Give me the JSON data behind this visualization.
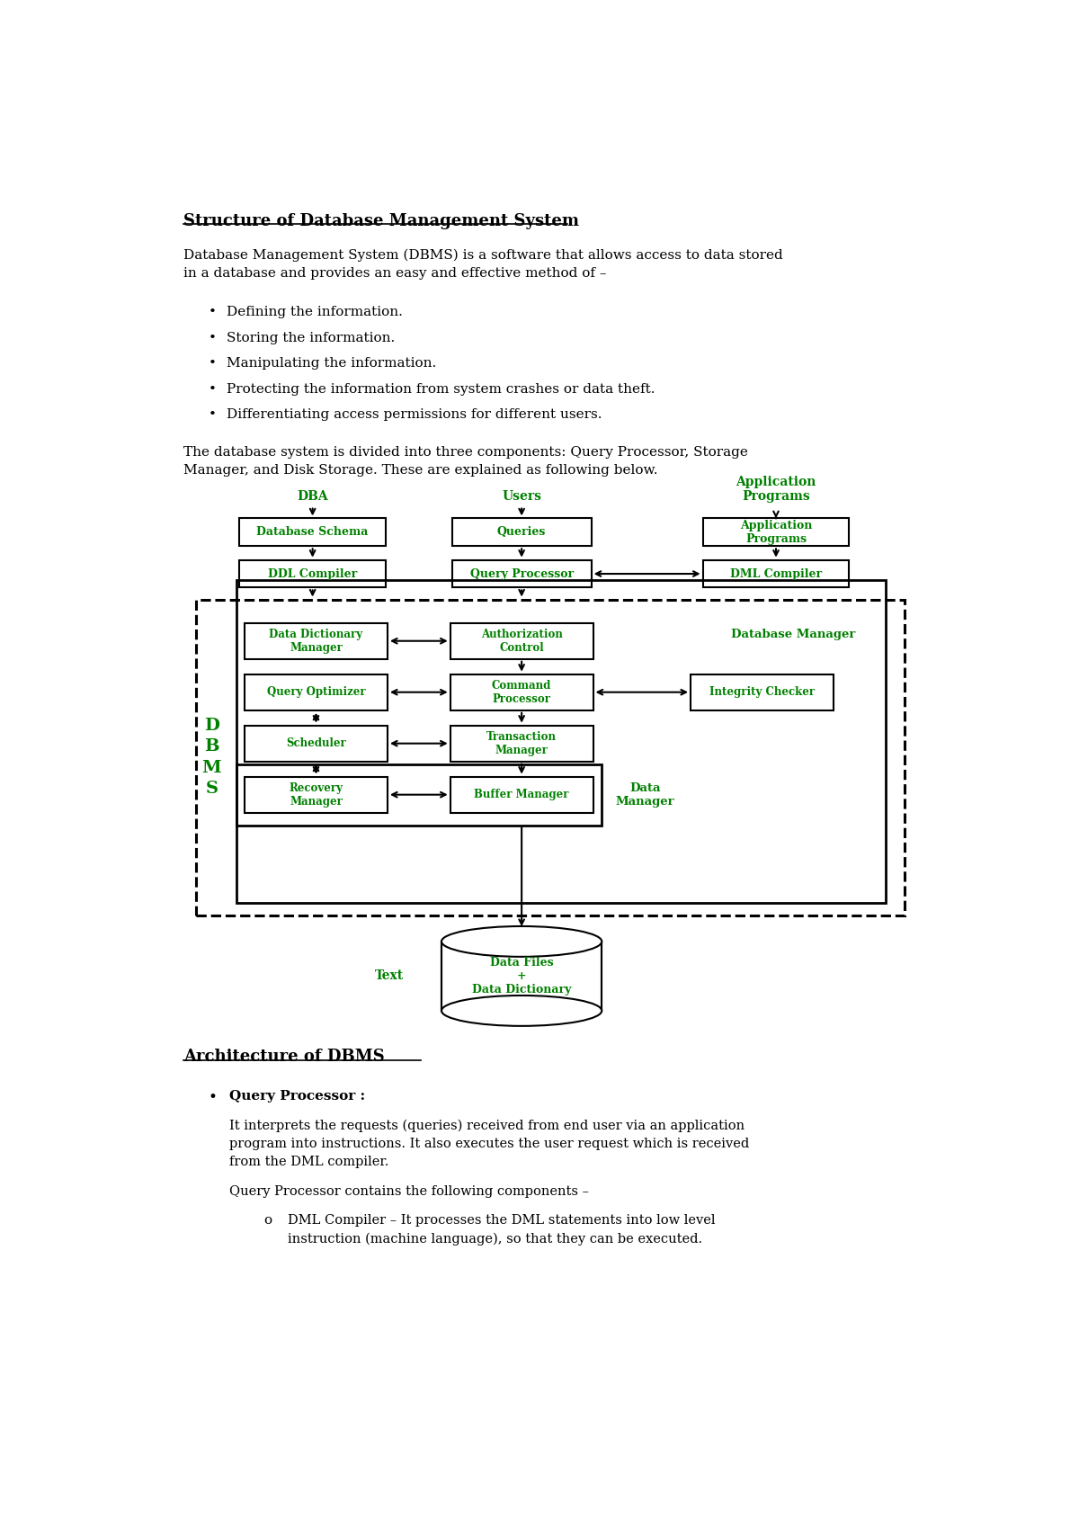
{
  "title": "Structure of Database Management System",
  "intro_text": "Database Management System (DBMS) is a software that allows access to data stored\nin a database and provides an easy and effective method of –",
  "bullets": [
    "Defining the information.",
    "Storing the information.",
    "Manipulating the information.",
    "Protecting the information from system crashes or data theft.",
    "Differentiating access permissions for different users."
  ],
  "para2": "The database system is divided into three components: Query Processor, Storage\nManager, and Disk Storage. These are explained as following below.",
  "arch_title": "Architecture of DBMS",
  "arch_bullet": "Query Processor :",
  "arch_text1": "It interprets the requests (queries) received from end user via an application\nprogram into instructions. It also executes the user request which is received\nfrom the DML compiler.",
  "arch_text2": "Query Processor contains the following components –",
  "arch_sub_bullet": "DML Compiler – It processes the DML statements into low level\ninstruction (machine language), so that they can be executed.",
  "green": "#008000",
  "black": "#000000",
  "bg": "#ffffff"
}
